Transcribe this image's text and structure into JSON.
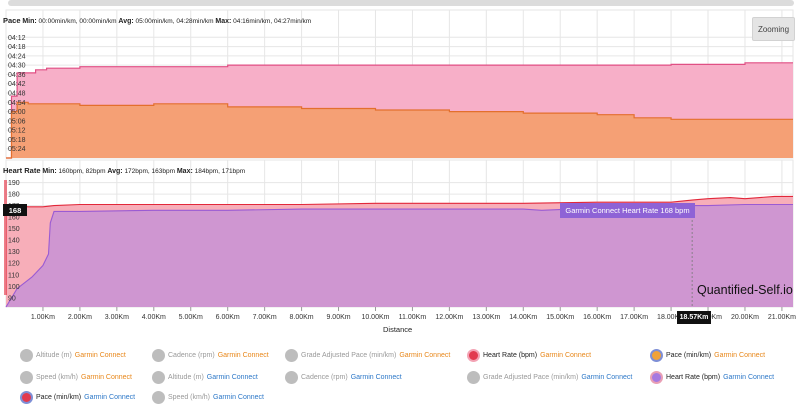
{
  "pace_panel": {
    "title": "Pace",
    "stats": [
      {
        "key": "Min:",
        "value": "00:00min/km, 00:00min/km"
      },
      {
        "key": "Avg:",
        "value": "05:00min/km, 04:28min/km"
      },
      {
        "key": "Max:",
        "value": "04:16min/km, 04:27min/km"
      }
    ]
  },
  "hr_panel": {
    "title": "Heart Rate",
    "stats": [
      {
        "key": "Min:",
        "value": "160bpm, 82bpm"
      },
      {
        "key": "Avg:",
        "value": "172bpm, 163bpm"
      },
      {
        "key": "Max:",
        "value": "184bpm, 171bpm"
      }
    ]
  },
  "zoom_label": "Zooming",
  "watermark": "Quantified-Self.io",
  "tooltip": "Garmin Connect Heart Rate 168 bpm",
  "hr_badge": "168",
  "dist_badge": "18.57Km",
  "x_axis_title": "Distance",
  "colors": {
    "pace_orange_fill": "#f5a075",
    "pace_pink_fill": "#f7afc8",
    "pace_orange_line": "#e36f2d",
    "pace_pink_line": "#e04f84",
    "hr_purple_fill": "#cc95d2",
    "hr_pink_fill": "#f7aeb9",
    "hr_purple_line": "#9a5bd3",
    "hr_red_line": "#e2283a",
    "grid": "#e6e6e6"
  },
  "chart_data": [
    {
      "type": "area",
      "panel": "pace",
      "y_unit": "min/km",
      "y_inverted": true,
      "y_ticks": [
        "04:12",
        "04:18",
        "04:24",
        "04:30",
        "04:36",
        "04:42",
        "04:48",
        "04:54",
        "05:00",
        "05:06",
        "05:12",
        "05:18",
        "05:24"
      ],
      "ylim_seconds": [
        246,
        330
      ],
      "x_unit": "Km",
      "xlim": [
        0,
        21.3
      ],
      "series": [
        {
          "name": "Pace (min/km) Garmin Connect",
          "x": [
            0,
            0.15,
            0.3,
            0.8,
            1.1,
            2,
            4,
            6,
            8,
            10,
            12,
            14,
            16,
            18,
            20,
            21.3
          ],
          "y_seconds": [
            330,
            290,
            275,
            273,
            272,
            271,
            271,
            270,
            270,
            270,
            270,
            270,
            270,
            269.5,
            268.5,
            268.5
          ]
        },
        {
          "name": "Pace (min/km) Garmin Connect",
          "x": [
            0,
            0.15,
            0.3,
            0.6,
            1,
            2,
            4,
            6,
            8,
            10,
            12,
            14,
            16,
            17,
            18,
            19.5,
            21.3
          ],
          "y_seconds": [
            330,
            300,
            294,
            295,
            295,
            296,
            295,
            297,
            298,
            299,
            300,
            301,
            302,
            304,
            305,
            305,
            305
          ]
        }
      ]
    },
    {
      "type": "area",
      "panel": "heart_rate",
      "y_unit": "bpm",
      "y_ticks": [
        90,
        100,
        110,
        120,
        130,
        140,
        150,
        160,
        170,
        180,
        190
      ],
      "ylim": [
        82,
        194
      ],
      "x_unit": "Km",
      "x_ticks": [
        "1.00Km",
        "2.00Km",
        "3.00Km",
        "4.00Km",
        "5.00Km",
        "6.00Km",
        "7.00Km",
        "8.00Km",
        "9.00Km",
        "10.00Km",
        "11.00Km",
        "12.00Km",
        "13.00Km",
        "14.00Km",
        "15.00Km",
        "16.00Km",
        "17.00Km",
        "18.00Km",
        "19.00Km",
        "20.00Km",
        "21.00Km"
      ],
      "xlim": [
        0,
        21.3
      ],
      "series": [
        {
          "name": "Heart Rate (bpm) Garmin Connect",
          "x": [
            0,
            0.2,
            0.6,
            1,
            1.3,
            2,
            4,
            6,
            8,
            10,
            12,
            14,
            16,
            18,
            18.6,
            19,
            19.6,
            20,
            20.8,
            21.3
          ],
          "y": [
            164,
            170,
            169,
            169,
            170,
            171,
            171,
            171,
            171,
            172,
            172,
            172,
            173,
            173,
            175,
            176,
            177,
            176,
            178,
            178
          ]
        },
        {
          "name": "Heart Rate (bpm) Garmin Connect",
          "x": [
            0,
            0.3,
            0.7,
            1,
            1.15,
            1.2,
            1.3,
            2,
            4,
            6,
            8,
            10,
            12,
            14,
            14.5,
            16,
            18,
            18.5,
            19,
            20,
            21.3
          ],
          "y": [
            82,
            98,
            108,
            118,
            128,
            155,
            165,
            165,
            166,
            166,
            167,
            167,
            167,
            167,
            166,
            168,
            168,
            170,
            170,
            171,
            171
          ]
        }
      ]
    }
  ],
  "legend": [
    {
      "label": "Altitude (m)",
      "source": "Garmin Connect",
      "source_color": "orange",
      "active": false,
      "dot_color": "#bdbdbd",
      "ring_color": "#bdbdbd"
    },
    {
      "label": "Cadence (rpm)",
      "source": "Garmin Connect",
      "source_color": "orange",
      "active": false,
      "dot_color": "#bdbdbd",
      "ring_color": "#bdbdbd"
    },
    {
      "label": "Grade Adjusted Pace (min/km)",
      "source": "Garmin Connect",
      "source_color": "orange",
      "active": false,
      "dot_color": "#bdbdbd",
      "ring_color": "#bdbdbd"
    },
    {
      "label": "Heart Rate (bpm)",
      "source": "Garmin Connect",
      "source_color": "orange",
      "active": true,
      "dot_color": "#e23a4f",
      "ring_color": "#f3a3b4"
    },
    {
      "label": "Pace (min/km)",
      "source": "Garmin Connect",
      "source_color": "orange",
      "active": true,
      "dot_color": "#f0a23a",
      "ring_color": "#7e8fd6"
    },
    {
      "label": "Speed (km/h)",
      "source": "Garmin Connect",
      "source_color": "orange",
      "active": false,
      "dot_color": "#bdbdbd",
      "ring_color": "#bdbdbd"
    },
    {
      "label": "Altitude (m)",
      "source": "Garmin Connect",
      "source_color": "blue",
      "active": false,
      "dot_color": "#bdbdbd",
      "ring_color": "#bdbdbd"
    },
    {
      "label": "Cadence (rpm)",
      "source": "Garmin Connect",
      "source_color": "blue",
      "active": false,
      "dot_color": "#bdbdbd",
      "ring_color": "#bdbdbd"
    },
    {
      "label": "Grade Adjusted Pace (min/km)",
      "source": "Garmin Connect",
      "source_color": "blue",
      "active": false,
      "dot_color": "#bdbdbd",
      "ring_color": "#bdbdbd"
    },
    {
      "label": "Heart Rate (bpm)",
      "source": "Garmin Connect",
      "source_color": "blue",
      "active": true,
      "dot_color": "#a679e0",
      "ring_color": "#e99fb5"
    },
    {
      "label": "Pace (min/km)",
      "source": "Garmin Connect",
      "source_color": "blue",
      "active": true,
      "dot_color": "#e23a4f",
      "ring_color": "#7e8fd6"
    },
    {
      "label": "Speed (km/h)",
      "source": "Garmin Connect",
      "source_color": "blue",
      "active": false,
      "dot_color": "#bdbdbd",
      "ring_color": "#bdbdbd"
    }
  ]
}
